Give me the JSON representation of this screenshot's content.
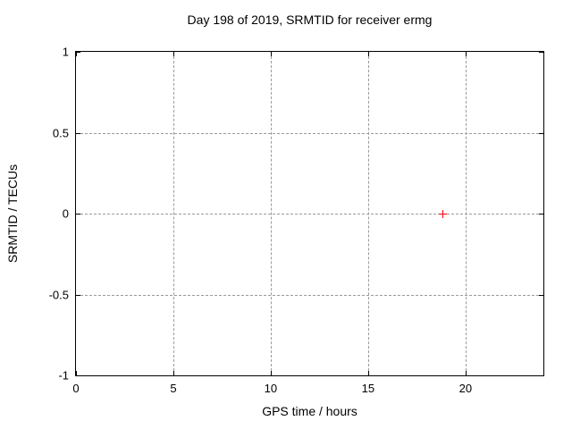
{
  "title": "Day 198 of 2019, SRMTID for receiver ermg",
  "chart_data": {
    "type": "scatter",
    "title": "Day 198 of 2019, SRMTID for receiver ermg",
    "xlabel": "GPS time / hours",
    "ylabel": "SRMTID / TECUs",
    "xlim": [
      0,
      24
    ],
    "ylim": [
      -1,
      1
    ],
    "xticks": [
      {
        "value": 0,
        "label": "0"
      },
      {
        "value": 5,
        "label": "5"
      },
      {
        "value": 10,
        "label": "10"
      },
      {
        "value": 15,
        "label": "15"
      },
      {
        "value": 20,
        "label": "20"
      }
    ],
    "yticks": [
      {
        "value": 1,
        "label": "1"
      },
      {
        "value": 0.5,
        "label": "0.5"
      },
      {
        "value": 0,
        "label": "0"
      },
      {
        "value": -0.5,
        "label": "-0.5"
      },
      {
        "value": -1,
        "label": "-1"
      }
    ],
    "grid": true,
    "legend": false,
    "colors": {
      "marker": "#ff0000",
      "grid": "#9a9a9a",
      "border": "#000000",
      "text": "#000000",
      "background": "#ffffff"
    },
    "series": [
      {
        "name": "SRMTID",
        "marker": "plus",
        "color": "#ff0000",
        "points": [
          {
            "x": 18.8,
            "y": 0.0
          }
        ]
      }
    ]
  }
}
